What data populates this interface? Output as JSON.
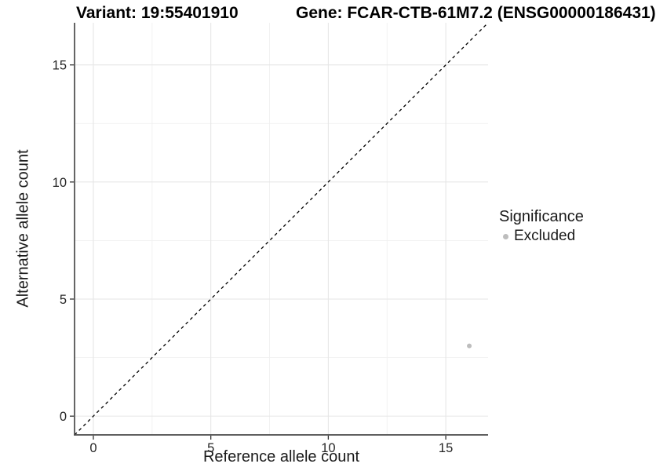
{
  "header": {
    "title_left": "Variant: 19:55401910",
    "title_right": "Gene: FCAR-CTB-61M7.2 (ENSG00000186431)"
  },
  "legend": {
    "title": "Significance",
    "items": [
      {
        "label": "Excluded",
        "color": "#bdbdbd"
      }
    ]
  },
  "chart_data": {
    "type": "scatter",
    "xlabel": "Reference allele count",
    "ylabel": "Alternative allele count",
    "xlim": [
      -0.8,
      16.8
    ],
    "ylim": [
      -0.8,
      16.8
    ],
    "xticks": [
      0,
      5,
      10,
      15
    ],
    "yticks": [
      0,
      5,
      10,
      15
    ],
    "x_minor_ticks": [
      2.5,
      7.5,
      12.5
    ],
    "y_minor_ticks": [
      2.5,
      7.5,
      12.5
    ],
    "grid": "major+minor",
    "legend_position": "right",
    "series": [
      {
        "name": "Excluded",
        "color": "#bdbdbd",
        "points": [
          {
            "x": 16,
            "y": 3
          }
        ]
      }
    ],
    "identity_line": {
      "slope": 1,
      "intercept": 0,
      "style": "dashed",
      "color": "#000000"
    }
  },
  "colors": {
    "background": "#ffffff",
    "grid_major": "#e6e6e6",
    "grid_minor": "#f0f0f0",
    "axis_line": "#4a4a4a",
    "tick_mark": "#333333",
    "point": "#bdbdbd",
    "text": "#1a1a1a"
  }
}
